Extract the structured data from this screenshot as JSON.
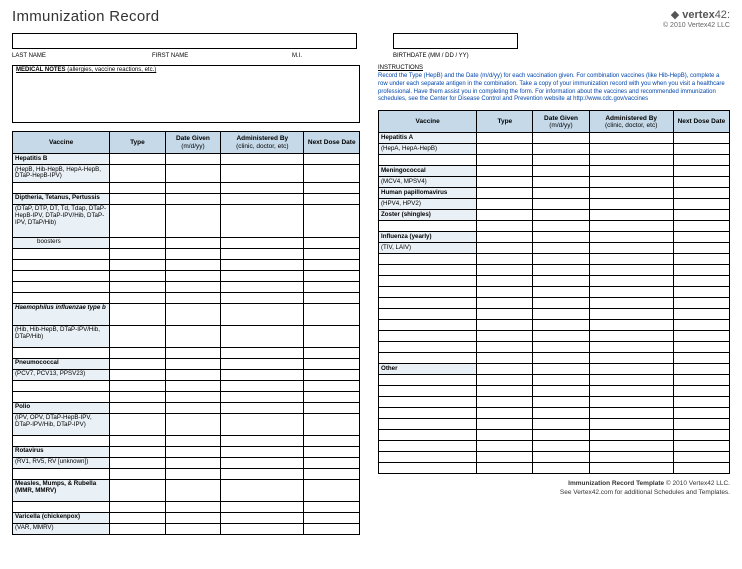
{
  "title": "Immunization Record",
  "logo": {
    "brand": "vertex",
    "suffix": "42",
    "copyright": "© 2010 Vertex42 LLC"
  },
  "fields": {
    "lastName": "LAST NAME",
    "firstName": "FIRST NAME",
    "mi": "M.I.",
    "birthdate": "BIRTHDATE (MM / DD / YY)"
  },
  "notes": {
    "header": "MEDICAL NOTES",
    "sub": " (allergies, vaccine reactions, etc.)"
  },
  "instructions": {
    "header": "INSTRUCTIONS",
    "body": "Record the Type (HepB) and the Date (m/d/yy) for each vaccination given. For combination vaccines (like Hib-HepB), complete a row under each separate antigen in the combination. Take a copy of your immunization record with you when you visit a healthcare professional. Have them assist you in completing the form. For information about the vaccines and recommended immunization schedules, see the Center for Disease Control and Prevention website at http://www.cdc.gov/vaccines"
  },
  "columns": {
    "vaccine": "Vaccine",
    "type": "Type",
    "dateGiven": "Date Given",
    "dateGivenSub": "(m/d/yy)",
    "adminBy": "Administered By",
    "adminBySub": "(clinic, doctor, etc)",
    "nextDose": "Next Dose Date"
  },
  "leftTable": [
    {
      "vac": "Hepatitis B",
      "bold": true,
      "tint": true
    },
    {
      "vac": "(HepB, Hib-HepB, HepA-HepB, DTaP-HepB-IPV)",
      "tint": true
    },
    {
      "blank": true
    },
    {
      "vac": "Diptheria, Tetanus, Pertussis",
      "bold": true,
      "tint": true
    },
    {
      "vac": "(DTaP, DTP, DT, Td, Tdap, DTaP-HepB-IPV, DTaP-IPV/Hib, DTaP-IPV, DTaP/Hib)",
      "tint": true,
      "tall": 3
    },
    {
      "vac": "boosters",
      "tint": true,
      "indent": true
    },
    {
      "blank": true
    },
    {
      "blank": true
    },
    {
      "blank": true
    },
    {
      "blank": true
    },
    {
      "blank": true
    },
    {
      "vac": "Haemophilus influenzae type b",
      "bold": true,
      "italic": true,
      "tint": true,
      "tall": 2
    },
    {
      "vac": "(Hib, Hib-HepB, DTaP-IPV/Hib, DTaP/Hib)",
      "tint": true,
      "tall": 2
    },
    {
      "blank": true
    },
    {
      "vac": "Pneumococcal",
      "bold": true,
      "tint": true
    },
    {
      "vac": "(PCV7, PCV13, PPSV23)",
      "tint": true
    },
    {
      "blank": true
    },
    {
      "blank": true
    },
    {
      "vac": "Polio",
      "bold": true,
      "tint": true
    },
    {
      "vac": "(IPV, OPV, DTaP-HepB-IPV, DTaP-IPV/Hib, DTaP-IPV)",
      "tint": true,
      "tall": 2
    },
    {
      "blank": true
    },
    {
      "vac": "Rotavirus",
      "bold": true,
      "tint": true
    },
    {
      "vac": "(RV1, RV5, RV [unknown])",
      "tint": true
    },
    {
      "blank": true
    },
    {
      "vac": "Measles, Mumps, & Rubella   (MMR, MMRV)",
      "bold": true,
      "tint": true,
      "tall": 2
    },
    {
      "blank": true
    },
    {
      "vac": "Varicella (chickenpox)",
      "bold": true,
      "tint": true
    },
    {
      "vac": "(VAR, MMRV)",
      "tint": true
    }
  ],
  "rightTable": [
    {
      "vac": "Hepatitis A",
      "bold": true,
      "tint": true
    },
    {
      "vac": "(HepA, HepA-HepB)",
      "tint": true
    },
    {
      "blank": true
    },
    {
      "vac": "Meningococcal",
      "bold": true,
      "tint": true
    },
    {
      "vac": "(MCV4, MPSV4)",
      "tint": true
    },
    {
      "vac": "Human papillomavirus",
      "bold": true,
      "tint": true
    },
    {
      "vac": "(HPV4, HPV2)",
      "tint": true
    },
    {
      "vac": "Zoster (shingles)",
      "bold": true,
      "tint": true
    },
    {
      "blank": true
    },
    {
      "vac": "Influenza (yearly)",
      "bold": true,
      "tint": true
    },
    {
      "vac": "(TIV, LAIV)",
      "tint": true
    },
    {
      "blank": true
    },
    {
      "blank": true
    },
    {
      "blank": true
    },
    {
      "blank": true
    },
    {
      "blank": true
    },
    {
      "blank": true
    },
    {
      "blank": true
    },
    {
      "blank": true
    },
    {
      "blank": true
    },
    {
      "blank": true
    },
    {
      "vac": "Other",
      "bold": true,
      "tint": true
    },
    {
      "blank": true
    },
    {
      "blank": true
    },
    {
      "blank": true
    },
    {
      "blank": true
    },
    {
      "blank": true
    },
    {
      "blank": true
    },
    {
      "blank": true
    },
    {
      "blank": true
    },
    {
      "blank": true
    }
  ],
  "footer": {
    "line1a": "Immunization Record Template",
    "line1b": " © 2010 Vertex42 LLC.",
    "line2": "See Vertex42.com for additional Schedules and Templates."
  },
  "colors": {
    "headerBg": "#c5d9e8",
    "tintBg": "#eaf1f6",
    "instrText": "#0045aa",
    "border": "#000000"
  }
}
